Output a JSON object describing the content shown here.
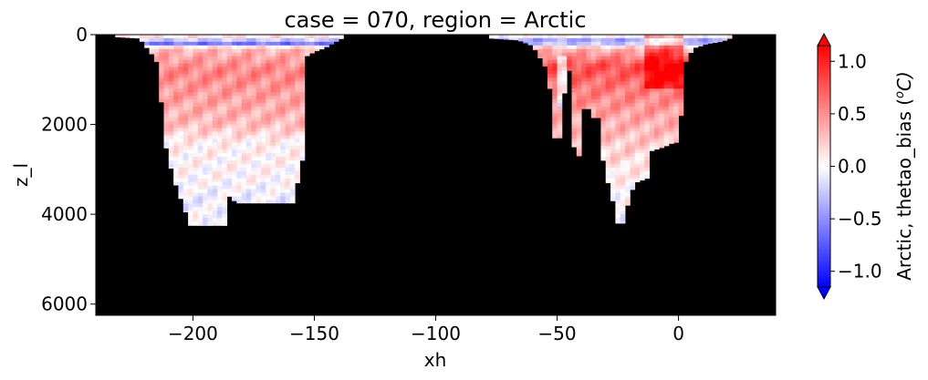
{
  "chart_data": {
    "type": "heatmap",
    "title": "case = 070, region = Arctic",
    "xlabel": "xh",
    "ylabel": "z_l",
    "xlim": [
      -240,
      40
    ],
    "ylim": [
      6250,
      0
    ],
    "y_inverted": true,
    "x_ticks": [
      -200,
      -150,
      -100,
      -50,
      0
    ],
    "x_tick_labels": [
      "−200",
      "−150",
      "−100",
      "−50",
      "0"
    ],
    "y_ticks": [
      0,
      2000,
      4000,
      6000
    ],
    "y_tick_labels": [
      "0",
      "2000",
      "4000",
      "6000"
    ],
    "missing_value_color": "#000000",
    "colorbar": {
      "label": "Arctic, thetao_bias (°C)",
      "label_base": "Arctic, thetao_bias (",
      "label_unit_sup": "o",
      "label_unit_tail": "C)",
      "vmin": -1.15,
      "vmax": 1.15,
      "extend": "both",
      "colormap": "bwr",
      "colors": [
        "#0000ff",
        "#ffffff",
        "#ff0000"
      ],
      "ticks": [
        -1.0,
        -0.5,
        0.0,
        0.5,
        1.0
      ],
      "tick_labels": [
        "−1.0",
        "−0.5",
        "0.0",
        "0.5",
        "1.0"
      ]
    },
    "regions": [
      {
        "x_range": [
          -232,
          -138
        ],
        "depth_profile": [
          [
            -232,
            50
          ],
          [
            -222,
            80
          ],
          [
            -216,
            500
          ],
          [
            -214,
            700
          ],
          [
            -212,
            2300
          ],
          [
            -208,
            3200
          ],
          [
            -204,
            3800
          ],
          [
            -201,
            4250
          ],
          [
            -187,
            4250
          ],
          [
            -186,
            3550
          ],
          [
            -182,
            3750
          ],
          [
            -158,
            3750
          ],
          [
            -157,
            3300
          ],
          [
            -155,
            2800
          ],
          [
            -154,
            2200
          ],
          [
            -155,
            1300
          ],
          [
            -154,
            500
          ],
          [
            -150,
            380
          ],
          [
            -146,
            300
          ],
          [
            -140,
            120
          ],
          [
            -138,
            60
          ]
        ],
        "mean_bias_by_depth": [
          [
            0,
            0.3
          ],
          [
            200,
            -0.6
          ],
          [
            300,
            0.3
          ],
          [
            800,
            0.55
          ],
          [
            1500,
            0.4
          ],
          [
            2000,
            0.3
          ],
          [
            2400,
            0.06
          ],
          [
            3200,
            0.02
          ],
          [
            3700,
            -0.08
          ],
          [
            4250,
            0.0
          ]
        ]
      },
      {
        "x_range": [
          -78,
          22
        ],
        "depth_profile": [
          [
            -78,
            80
          ],
          [
            -66,
            120
          ],
          [
            -60,
            250
          ],
          [
            -55,
            700
          ],
          [
            -53,
            1200
          ],
          [
            -52,
            1800
          ],
          [
            -51,
            2300
          ],
          [
            -48,
            2300
          ],
          [
            -47,
            1300
          ],
          [
            -45,
            800
          ],
          [
            -44,
            1600
          ],
          [
            -43,
            2500
          ],
          [
            -41,
            2700
          ],
          [
            -40,
            1800
          ],
          [
            -38,
            1500
          ],
          [
            -36,
            1800
          ],
          [
            -34,
            1900
          ],
          [
            -33,
            1850
          ],
          [
            -31,
            2800
          ],
          [
            -29,
            3300
          ],
          [
            -27,
            3700
          ],
          [
            -25,
            4200
          ],
          [
            -23,
            4200
          ],
          [
            -21,
            3800
          ],
          [
            -20,
            3600
          ],
          [
            -18,
            3300
          ],
          [
            -13,
            3200
          ],
          [
            -12,
            2600
          ],
          [
            -6,
            2500
          ],
          [
            -2,
            2400
          ],
          [
            0,
            2400
          ],
          [
            1,
            1800
          ],
          [
            1,
            1000
          ],
          [
            3,
            600
          ],
          [
            6,
            300
          ],
          [
            12,
            200
          ],
          [
            18,
            150
          ],
          [
            22,
            60
          ]
        ],
        "mean_bias_by_depth": [
          [
            0,
            0.2
          ],
          [
            150,
            -0.55
          ],
          [
            300,
            0.3
          ],
          [
            700,
            0.8
          ],
          [
            1200,
            0.6
          ],
          [
            2000,
            0.35
          ],
          [
            2600,
            0.2
          ],
          [
            3300,
            0.05
          ],
          [
            4200,
            -0.03
          ]
        ]
      }
    ]
  }
}
